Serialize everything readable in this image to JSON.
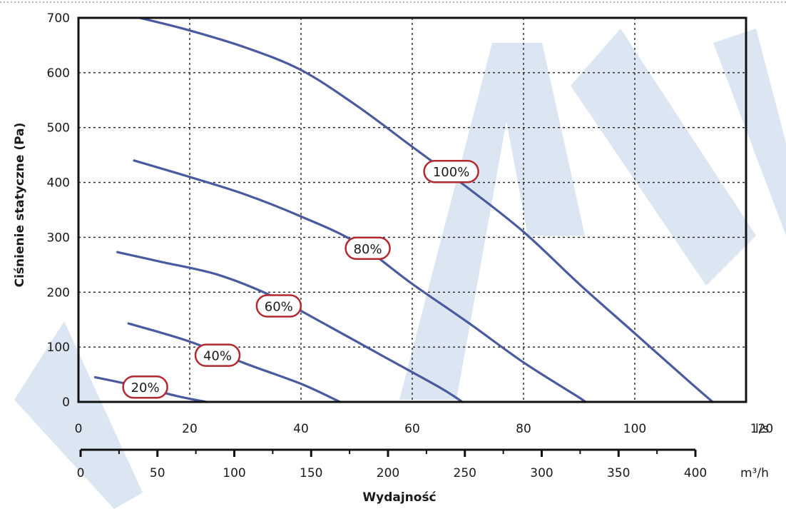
{
  "chart_data": {
    "type": "line",
    "title": "",
    "ylabel": "Ciśnienie statyczne (Pa)",
    "xlabel": "Wydajność",
    "x_unit_primary": "l/s",
    "x_unit_secondary": "m³/h",
    "xlim": [
      0,
      120
    ],
    "ylim": [
      0,
      700
    ],
    "x_ticks": [
      "0",
      "20",
      "40",
      "60",
      "80",
      "100",
      "120"
    ],
    "x_ticks_secondary": [
      "0",
      "50",
      "100",
      "150",
      "200",
      "250",
      "300",
      "350",
      "400"
    ],
    "y_ticks": [
      "0",
      "100",
      "200",
      "300",
      "400",
      "500",
      "600",
      "700"
    ],
    "grid": true,
    "line_color": "#4a5a9e",
    "label_border_color": "#b22a30",
    "watermark_color": "#dce6f3",
    "series": [
      {
        "name": "100%",
        "label_at": [
          67,
          420
        ],
        "x": [
          11,
          20,
          30,
          40,
          50,
          60,
          70,
          80,
          90,
          100,
          110,
          114
        ],
        "y": [
          700,
          677,
          646,
          605,
          540,
          465,
          390,
          310,
          215,
          125,
          35,
          0
        ]
      },
      {
        "name": "80%",
        "label_at": [
          52,
          280
        ],
        "x": [
          10,
          20,
          30,
          40,
          50,
          60,
          70,
          80,
          90,
          91
        ],
        "y": [
          440,
          410,
          378,
          338,
          290,
          215,
          145,
          72,
          8,
          0
        ]
      },
      {
        "name": "60%",
        "label_at": [
          36,
          175
        ],
        "x": [
          7,
          15,
          25,
          35,
          45,
          55,
          65,
          69
        ],
        "y": [
          273,
          255,
          232,
          192,
          138,
          82,
          26,
          0
        ]
      },
      {
        "name": "40%",
        "label_at": [
          25,
          85
        ],
        "x": [
          9,
          20,
          30,
          40,
          47
        ],
        "y": [
          143,
          110,
          70,
          33,
          0
        ]
      },
      {
        "name": "20%",
        "label_at": [
          12,
          27
        ],
        "x": [
          3,
          10,
          18,
          23
        ],
        "y": [
          45,
          30,
          10,
          0
        ]
      }
    ]
  }
}
